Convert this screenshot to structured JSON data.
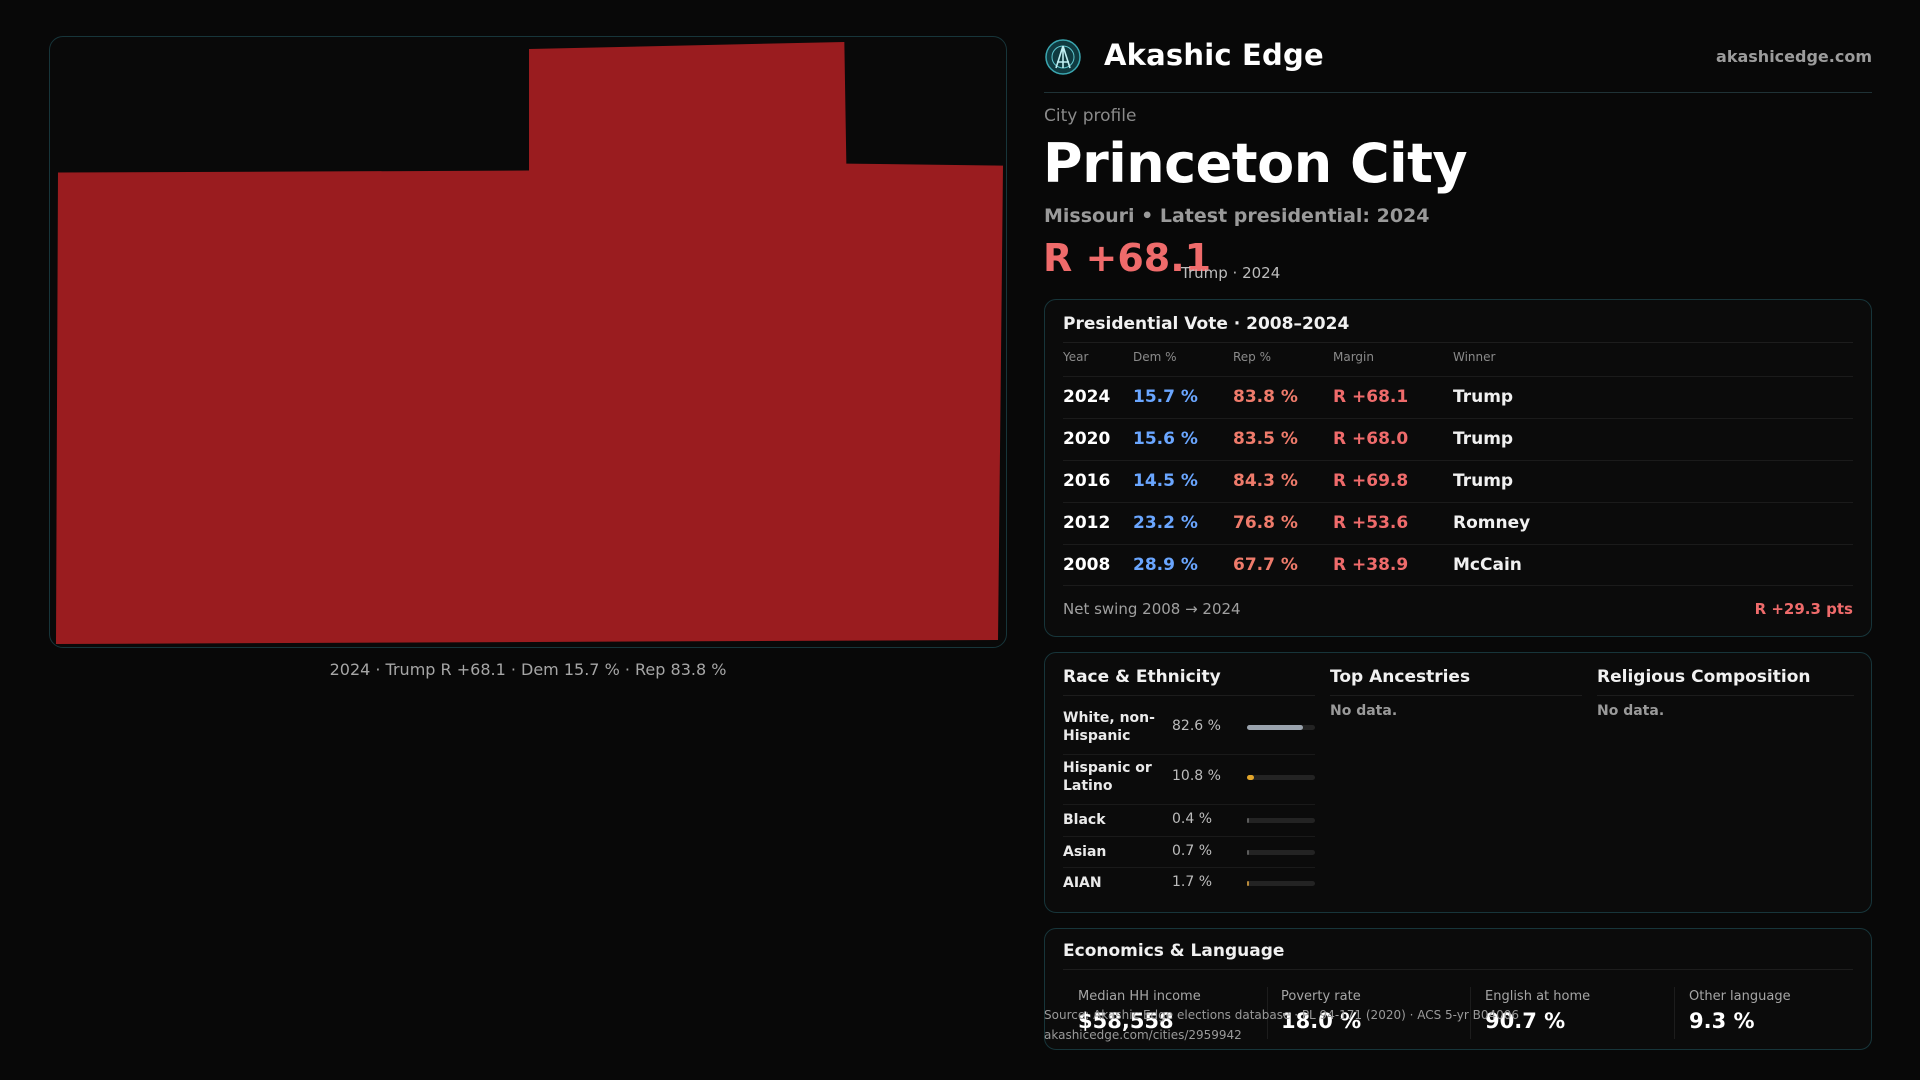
{
  "header": {
    "app_title": "Akashic Edge",
    "site_link": "akashicedge.com",
    "logo_icon": "akashic-edge-logo"
  },
  "map": {
    "fill_color": "#9a1c1f",
    "caption": "2024 · Trump R +68.1 · Dem 15.7 % · Rep 83.8 %"
  },
  "profile": {
    "eyebrow": "City profile",
    "city": "Princeton City",
    "subtitle": "Missouri • Latest presidential: 2024",
    "margin": "R +68.1",
    "margin_note": "Trump · 2024"
  },
  "vote": {
    "title": "Presidential Vote · 2008–2024",
    "columns": [
      "Year",
      "Dem %",
      "Rep %",
      "Margin",
      "Winner"
    ],
    "rows": [
      {
        "year": "2024",
        "dem": "15.7 %",
        "rep": "83.8 %",
        "margin": "R +68.1",
        "winner": "Trump"
      },
      {
        "year": "2020",
        "dem": "15.6 %",
        "rep": "83.5 %",
        "margin": "R +68.0",
        "winner": "Trump"
      },
      {
        "year": "2016",
        "dem": "14.5 %",
        "rep": "84.3 %",
        "margin": "R +69.8",
        "winner": "Trump"
      },
      {
        "year": "2012",
        "dem": "23.2 %",
        "rep": "76.8 %",
        "margin": "R +53.6",
        "winner": "Romney"
      },
      {
        "year": "2008",
        "dem": "28.9 %",
        "rep": "67.7 %",
        "margin": "R +38.9",
        "winner": "McCain"
      }
    ],
    "swing_label": "Net swing 2008 → 2024",
    "swing_value": "R +29.3 pts"
  },
  "demographics": {
    "race_title": "Race & Ethnicity",
    "race": [
      {
        "label": "White, non-Hispanic",
        "pct": "82.6 %",
        "share": 0.826,
        "color": "#9aa3ad"
      },
      {
        "label": "Hispanic or Latino",
        "pct": "10.8 %",
        "share": 0.108,
        "color": "#e2a52a"
      },
      {
        "label": "Black",
        "pct": "0.4 %",
        "share": 0.004,
        "color": "#5c5c5c"
      },
      {
        "label": "Asian",
        "pct": "0.7 %",
        "share": 0.007,
        "color": "#5c5c5c"
      },
      {
        "label": "AIAN",
        "pct": "1.7 %",
        "share": 0.017,
        "color": "#b88a3a"
      }
    ],
    "ancestries_title": "Top Ancestries",
    "ancestries_empty": "No data.",
    "religion_title": "Religious Composition",
    "religion_empty": "No data."
  },
  "economics": {
    "title": "Economics & Language",
    "stats": [
      {
        "label": "Median HH income",
        "value": "$58,558"
      },
      {
        "label": "Poverty rate",
        "value": "18.0 %"
      },
      {
        "label": "English at home",
        "value": "90.7 %"
      },
      {
        "label": "Other language",
        "value": "9.3 %"
      }
    ]
  },
  "footer": {
    "source": "Source: Akashic Edge elections database · PL 94-171 (2020) · ACS 5-yr B04006",
    "url": "akashicedge.com/cities/2959942"
  }
}
